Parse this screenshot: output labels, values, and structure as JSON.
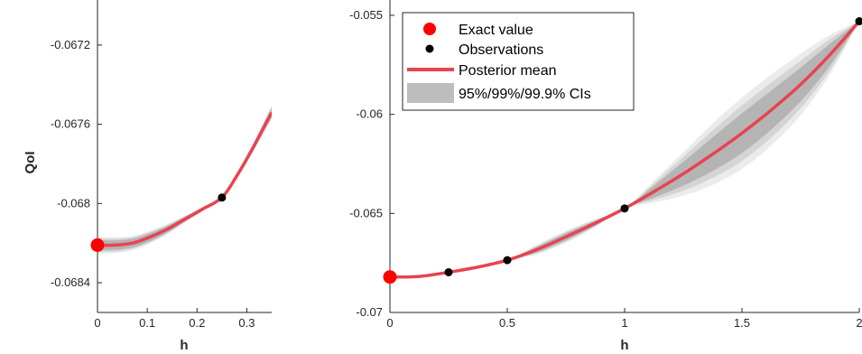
{
  "colors": {
    "mean": "#e8434f",
    "exact": "#ff0000",
    "obs": "#000000",
    "ci999": "#ebebeb",
    "ci99": "#d4d4d4",
    "ci95": "#b4b4b4",
    "axis": "#262626"
  },
  "chart_data": [
    {
      "type": "line",
      "title": "",
      "xlabel": "h",
      "ylabel": "QoI",
      "xlim": [
        0,
        0.35
      ],
      "ylim": [
        -0.06855,
        -0.067
      ],
      "xticks": [
        0,
        0.1,
        0.2,
        0.3
      ],
      "xtick_labels": [
        "0",
        "0.1",
        "0.2",
        "0.3"
      ],
      "yticks": [
        -0.0672,
        -0.0676,
        -0.068,
        -0.0684
      ],
      "ytick_labels": [
        "-0.0672",
        "-0.0676",
        "-0.068",
        "-0.0684"
      ],
      "grid": false,
      "series": [
        {
          "name": "Exact value",
          "kind": "marker",
          "x": [
            0
          ],
          "y": [
            -0.06821
          ]
        },
        {
          "name": "Observations",
          "kind": "marker",
          "x": [
            0.25
          ],
          "y": [
            -0.06797
          ]
        },
        {
          "name": "Posterior mean",
          "kind": "line",
          "x": [
            0,
            0.035,
            0.07,
            0.105,
            0.14,
            0.175,
            0.21,
            0.25,
            0.28,
            0.31,
            0.35
          ],
          "y": [
            -0.06821,
            -0.06821,
            -0.0682,
            -0.06817,
            -0.06813,
            -0.06808,
            -0.06803,
            -0.06797,
            -0.06786,
            -0.06773,
            -0.06754
          ]
        },
        {
          "name": "95%/99%/99.9% CIs",
          "kind": "band",
          "x": [
            0,
            0.035,
            0.07,
            0.105,
            0.14,
            0.175,
            0.21,
            0.25,
            0.28,
            0.31,
            0.35
          ],
          "half_width_95": [
            2.5e-05,
            2.4e-05,
            2.2e-05,
            2e-05,
            1.6e-05,
            1.1e-05,
            6e-06,
            0.0,
            5e-06,
            1.2e-05,
            2.2e-05
          ],
          "half_width_99": [
            3.4e-05,
            3.2e-05,
            2.9e-05,
            2.6e-05,
            2.1e-05,
            1.5e-05,
            8e-06,
            0.0,
            7e-06,
            1.6e-05,
            2.9e-05
          ],
          "half_width_999": [
            4.2e-05,
            4e-05,
            3.6e-05,
            3.2e-05,
            2.6e-05,
            1.8e-05,
            1e-05,
            0.0,
            9e-06,
            2e-05,
            3.6e-05
          ]
        }
      ]
    },
    {
      "type": "line",
      "title": "",
      "xlabel": "h",
      "ylabel": "",
      "xlim": [
        0,
        2
      ],
      "ylim": [
        -0.07,
        -0.0545
      ],
      "xticks": [
        0,
        0.5,
        1,
        1.5,
        2
      ],
      "xtick_labels": [
        "0",
        "0.5",
        "1",
        "1.5",
        "2"
      ],
      "yticks": [
        -0.055,
        -0.06,
        -0.065,
        -0.07
      ],
      "ytick_labels": [
        "-0.055",
        "-0.06",
        "-0.065",
        "-0.07"
      ],
      "grid": false,
      "legend": {
        "position": "top-left"
      },
      "series": [
        {
          "name": "Exact value",
          "kind": "marker",
          "x": [
            0
          ],
          "y": [
            -0.06821
          ]
        },
        {
          "name": "Observations",
          "kind": "marker",
          "x": [
            0.25,
            0.5,
            1,
            2
          ],
          "y": [
            -0.06797,
            -0.06736,
            -0.06475,
            -0.0553
          ]
        },
        {
          "name": "Posterior mean",
          "kind": "line",
          "x": [
            0,
            0.125,
            0.25,
            0.375,
            0.5,
            0.625,
            0.75,
            0.875,
            1,
            1.125,
            1.25,
            1.375,
            1.5,
            1.625,
            1.75,
            1.875,
            2
          ],
          "y": [
            -0.06821,
            -0.06818,
            -0.06797,
            -0.06771,
            -0.06736,
            -0.06683,
            -0.06618,
            -0.06549,
            -0.06475,
            -0.0639,
            -0.063,
            -0.06201,
            -0.06095,
            -0.05978,
            -0.05849,
            -0.05699,
            -0.0553
          ]
        },
        {
          "name": "95%/99%/99.9% CIs",
          "kind": "band",
          "x": [
            0,
            0.125,
            0.25,
            0.375,
            0.5,
            0.625,
            0.75,
            0.875,
            1,
            1.125,
            1.25,
            1.375,
            1.5,
            1.625,
            1.75,
            1.875,
            2
          ],
          "half_width_95": [
            0.0,
            2e-05,
            0.0,
            3e-05,
            0.0,
            0.00014,
            0.00018,
            0.00012,
            0.0,
            0.0003,
            0.0006,
            0.00085,
            0.001,
            0.00098,
            0.00085,
            0.00055,
            0.0
          ],
          "half_width_99": [
            0.0,
            3e-05,
            0.0,
            4e-05,
            0.0,
            0.00019,
            0.00024,
            0.00016,
            0.0,
            0.00042,
            0.00085,
            0.0012,
            0.0014,
            0.00138,
            0.0012,
            0.00078,
            0.0
          ],
          "half_width_999": [
            0.0,
            4e-05,
            0.0,
            5e-05,
            0.0,
            0.00024,
            0.0003,
            0.0002,
            0.0,
            0.00055,
            0.0011,
            0.00155,
            0.0018,
            0.00178,
            0.00155,
            0.001,
            0.0
          ]
        }
      ]
    }
  ]
}
